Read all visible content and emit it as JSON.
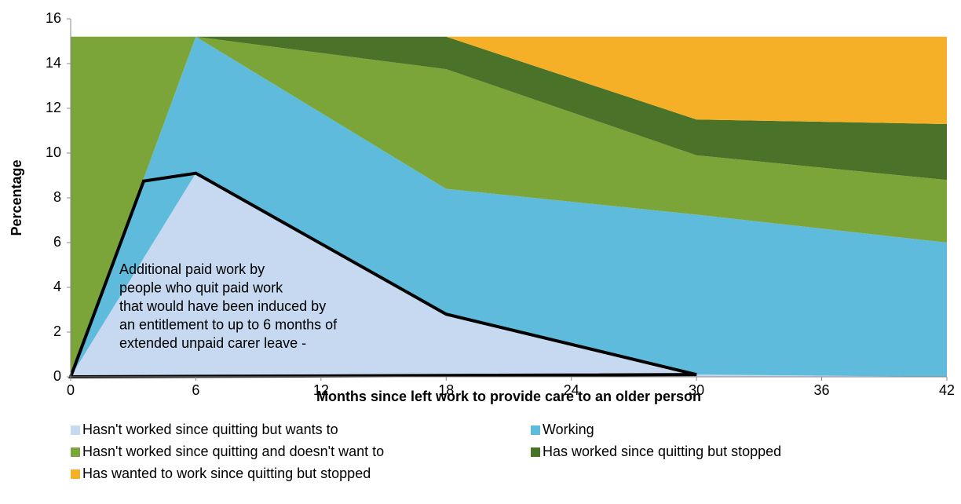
{
  "chart_data": {
    "type": "stacked_area",
    "xlabel": "Months since left work to provide care to an older person",
    "ylabel": "Percentage",
    "x": [
      0,
      6,
      18,
      30,
      42
    ],
    "xlim": [
      0,
      42
    ],
    "xticks": [
      0,
      6,
      12,
      18,
      24,
      30,
      36,
      42
    ],
    "ylim": [
      0,
      16
    ],
    "yticks": [
      0,
      2,
      4,
      6,
      8,
      10,
      12,
      14,
      16
    ],
    "grid": false,
    "legend": "bottom",
    "series": [
      {
        "name": "Hasn't worked since quitting but wants to",
        "color": "#c6d9f1",
        "values": [
          0,
          9.1,
          2.8,
          0.1,
          0
        ]
      },
      {
        "name": "Working",
        "color": "#5fbbdb",
        "values": [
          0,
          6.1,
          5.6,
          7.15,
          6.0
        ]
      },
      {
        "name": "Hasn't worked since quitting and doesn't want to",
        "color": "#7ba538",
        "values": [
          15.2,
          0,
          5.35,
          2.65,
          2.8
        ]
      },
      {
        "name": "Has worked since quitting but stopped",
        "color": "#4b7229",
        "values": [
          0,
          0,
          1.45,
          1.6,
          2.5
        ]
      },
      {
        "name": "Has wanted to work since quitting but stopped",
        "color": "#f5b027",
        "values": [
          0,
          0,
          0,
          3.7,
          3.9
        ]
      }
    ],
    "annotation_outline": {
      "x": [
        0,
        3.5,
        6,
        18,
        30
      ],
      "y": [
        0,
        8.75,
        9.1,
        2.8,
        0.1
      ],
      "color": "#000000"
    },
    "annotation": [
      "Additional paid work by",
      "people who quit paid work",
      "that would have been induced by",
      "an entitlement to up to 6 months of",
      "extended unpaid carer leave -"
    ]
  }
}
